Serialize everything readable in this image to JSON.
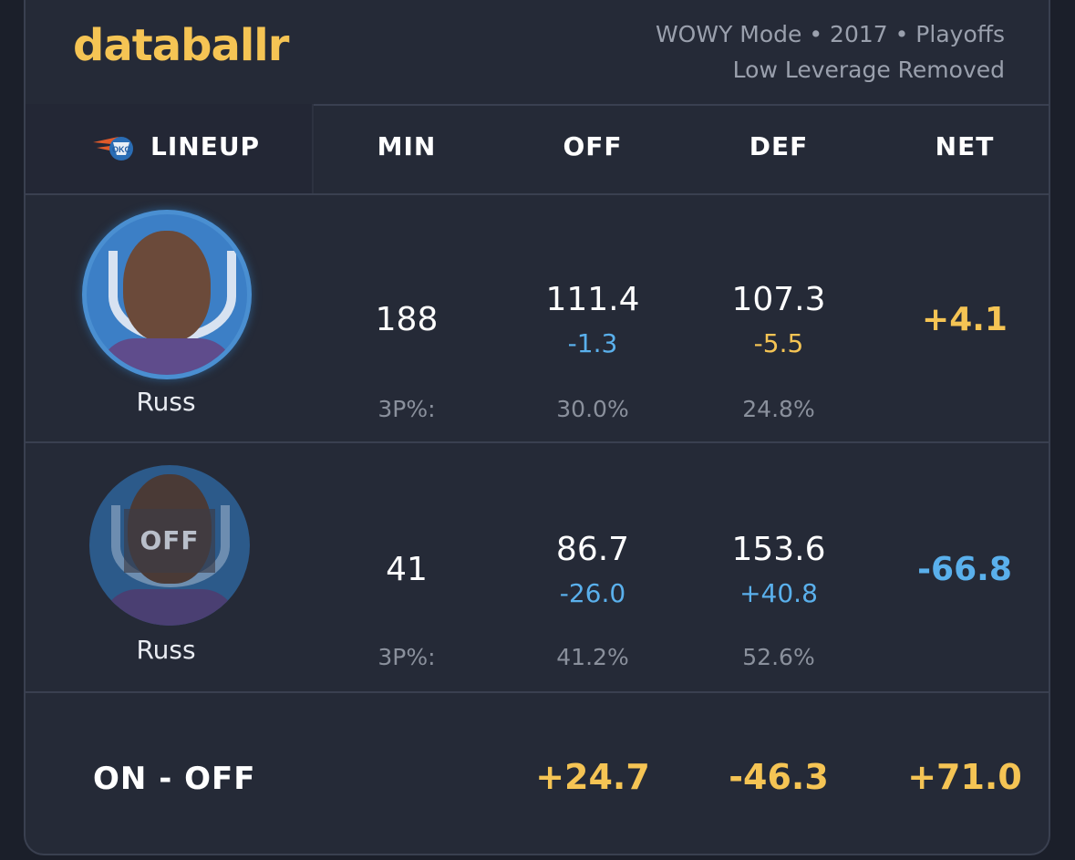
{
  "header": {
    "brand": "databallr",
    "meta_line1": "WOWY Mode • 2017 • Playoffs",
    "meta_line2": "Low Leverage Removed"
  },
  "columns": {
    "lineup": "LINEUP",
    "min": "MIN",
    "off": "OFF",
    "def": "DEF",
    "net": "NET"
  },
  "rows": [
    {
      "player": "Russ",
      "status_label": "",
      "min": "188",
      "off": "111.4",
      "off_diff": "-1.3",
      "def": "107.3",
      "def_diff": "-5.5",
      "net": "+4.1",
      "pct_label": "3P%:",
      "off_3p": "30.0%",
      "def_3p": "24.8%"
    },
    {
      "player": "Russ",
      "status_label": "OFF",
      "min": "41",
      "off": "86.7",
      "off_diff": "-26.0",
      "def": "153.6",
      "def_diff": "+40.8",
      "net": "-66.8",
      "pct_label": "3P%:",
      "off_3p": "41.2%",
      "def_3p": "52.6%"
    }
  ],
  "summary": {
    "label": "ON - OFF",
    "off": "+24.7",
    "def": "-46.3",
    "net": "+71.0"
  },
  "colors": {
    "gold": "#f5c454",
    "blue": "#5ab0ec",
    "background": "#252a37"
  },
  "icons": {
    "team_logo": "okc-thunder-logo-icon"
  }
}
